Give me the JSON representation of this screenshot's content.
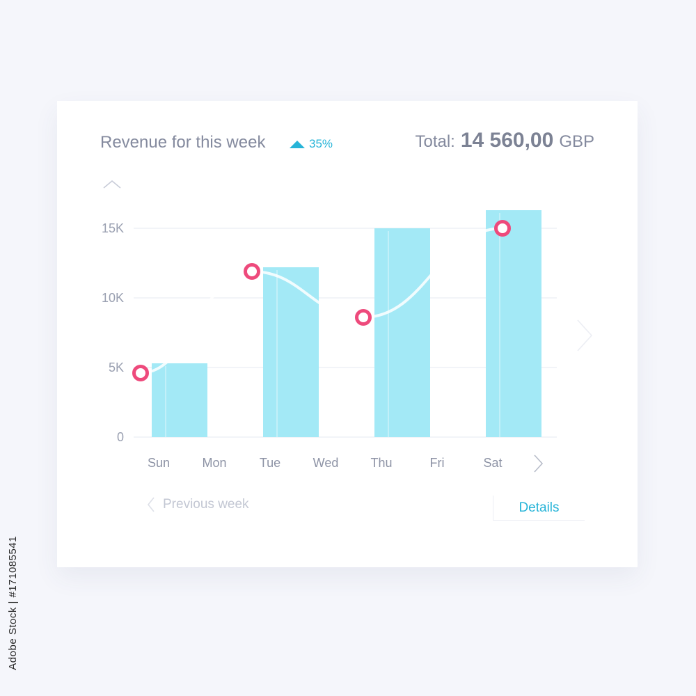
{
  "header": {
    "title": "Revenue for this week",
    "growth": "35%",
    "total_label": "Total:",
    "total_amount": "14 560,00",
    "currency": "GBP"
  },
  "footer": {
    "previous_label": "Previous week",
    "details_label": "Details"
  },
  "colors": {
    "bar": "#a3e9f6",
    "marker": "#ee4a7c",
    "accent": "#27b4d8",
    "line": "#ffffff"
  },
  "watermark": "Adobe Stock | #171085541",
  "chart_data": {
    "type": "bar",
    "title": "Revenue for this week",
    "xlabel": "",
    "ylabel": "",
    "categories": [
      "Sun",
      "Mon",
      "Tue",
      "Wed",
      "Thu",
      "Fri",
      "Sat"
    ],
    "yticks": [
      "0",
      "5K",
      "10K",
      "15K"
    ],
    "ylim": [
      0,
      17500
    ],
    "grid": true,
    "bars": [
      {
        "x_start": 0.0,
        "x_end": 1.0,
        "value": 5300
      },
      {
        "x_start": 2.0,
        "x_end": 3.0,
        "value": 12200
      },
      {
        "x_start": 4.0,
        "x_end": 5.0,
        "value": 15000
      },
      {
        "x_start": 6.0,
        "x_end": 7.0,
        "value": 16300
      }
    ],
    "line_points": [
      {
        "x": -0.2,
        "y": 4600
      },
      {
        "x": 1.8,
        "y": 11900
      },
      {
        "x": 3.8,
        "y": 8600
      },
      {
        "x": 6.3,
        "y": 15000
      }
    ]
  }
}
